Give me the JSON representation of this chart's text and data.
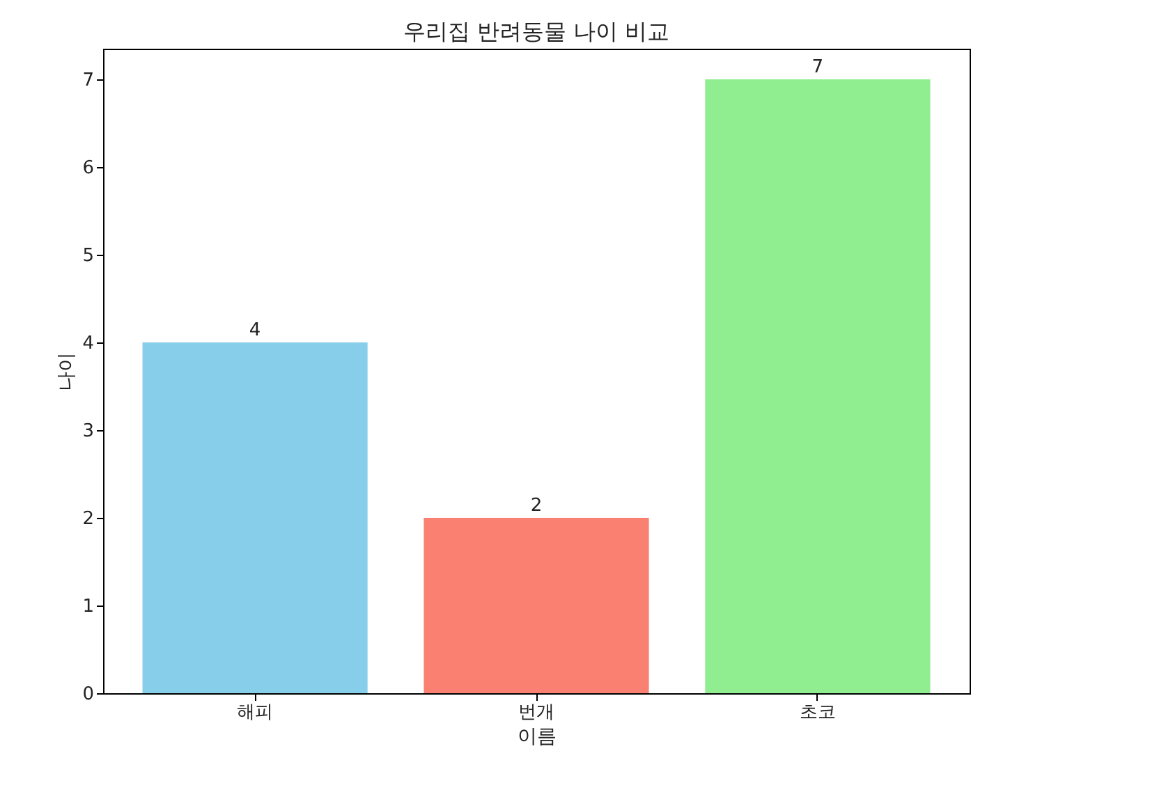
{
  "chart_data": {
    "type": "bar",
    "title": "우리집 반려동물 나이 비교",
    "xlabel": "이름",
    "ylabel": "나이",
    "categories": [
      "해피",
      "번개",
      "초코"
    ],
    "values": [
      4,
      2,
      7
    ],
    "colors": [
      "#87ceeb",
      "#fa8072",
      "#90ee90"
    ],
    "ylim": [
      0,
      7.35
    ],
    "yticks": [
      0,
      1,
      2,
      3,
      4,
      5,
      6,
      7
    ],
    "data_labels": true,
    "grid": false,
    "legend": false
  }
}
